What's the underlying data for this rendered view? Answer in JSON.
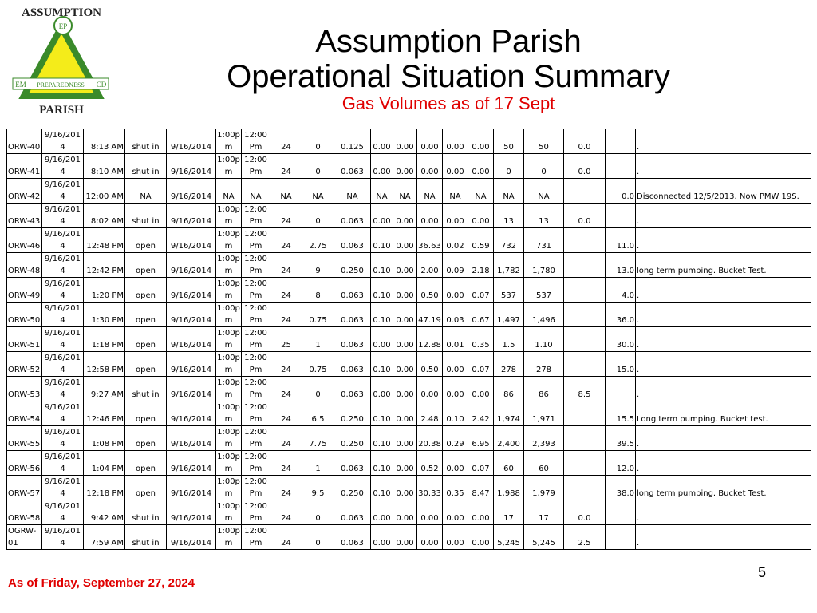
{
  "header": {
    "title_line1": "Assumption Parish",
    "title_line2": "Operational Situation Summary",
    "subtitle": "Gas Volumes as of 17 Sept",
    "logo_top": "ASSUMPTION",
    "logo_bottom": "PARISH",
    "logo_left": "EM",
    "logo_center": "PREPAREDNESS",
    "logo_right": "CD",
    "logo_ep": "EP"
  },
  "table": {
    "rows": [
      [
        "ORW-40",
        "9/16/2014",
        "8:13 AM",
        "shut in",
        "9/16/2014",
        "1:00pm",
        "12:00 Pm",
        "24",
        "0",
        "0.125",
        "0.00",
        "0.00",
        "0.00",
        "0.00",
        "0.00",
        "50",
        "50",
        "0.0",
        null,
        "."
      ],
      [
        "ORW-41",
        "9/16/2014",
        "8:10 AM",
        "shut in",
        "9/16/2014",
        "1:00pm",
        "12:00 Pm",
        "24",
        "0",
        "0.063",
        "0.00",
        "0.00",
        "0.00",
        "0.00",
        "0.00",
        "0",
        "0",
        "0.0",
        null,
        "."
      ],
      [
        "ORW-42",
        "9/16/2014",
        "12:00 AM",
        "NA",
        "9/16/2014",
        "NA",
        "NA",
        "NA",
        "NA",
        "NA",
        "NA",
        "NA",
        "NA",
        "NA",
        "NA",
        "NA",
        "NA",
        null,
        "0.0",
        "Disconnected 12/5/2013.  Now PMW 19S."
      ],
      [
        "ORW-43",
        "9/16/2014",
        "8:02 AM",
        "shut in",
        "9/16/2014",
        "1:00pm",
        "12:00 Pm",
        "24",
        "0",
        "0.063",
        "0.00",
        "0.00",
        "0.00",
        "0.00",
        "0.00",
        "13",
        "13",
        "0.0",
        null,
        "."
      ],
      [
        "ORW-46",
        "9/16/2014",
        "12:48 PM",
        "open",
        "9/16/2014",
        "1:00pm",
        "12:00 Pm",
        "24",
        "2.75",
        "0.063",
        "0.10",
        "0.00",
        "36.63",
        "0.02",
        "0.59",
        "732",
        "731",
        null,
        "11.0",
        "."
      ],
      [
        "ORW-48",
        "9/16/2014",
        "12:42 PM",
        "open",
        "9/16/2014",
        "1:00pm",
        "12:00 Pm",
        "24",
        "9",
        "0.250",
        "0.10",
        "0.00",
        "2.00",
        "0.09",
        "2.18",
        "1,782",
        "1,780",
        null,
        "13.0",
        "long term pumping. Bucket Test."
      ],
      [
        "ORW-49",
        "9/16/2014",
        "1:20 PM",
        "open",
        "9/16/2014",
        "1:00pm",
        "12:00 Pm",
        "24",
        "8",
        "0.063",
        "0.10",
        "0.00",
        "0.50",
        "0.00",
        "0.07",
        "537",
        "537",
        null,
        "4.0",
        "."
      ],
      [
        "ORW-50",
        "9/16/2014",
        "1:30 PM",
        "open",
        "9/16/2014",
        "1:00pm",
        "12:00 Pm",
        "24",
        "0.75",
        "0.063",
        "0.10",
        "0.00",
        "47.19",
        "0.03",
        "0.67",
        "1,497",
        "1,496",
        null,
        "36.0",
        "."
      ],
      [
        "ORW-51",
        "9/16/2014",
        "1:18 PM",
        "open",
        "9/16/2014",
        "1:00pm",
        "12:00 Pm",
        "25",
        "1",
        "0.063",
        "0.00",
        "0.00",
        "12.88",
        "0.01",
        "0.35",
        "1.5",
        "1.10",
        null,
        "30.0",
        "."
      ],
      [
        "ORW-52",
        "9/16/2014",
        "12:58 PM",
        "open",
        "9/16/2014",
        "1:00pm",
        "12:00 Pm",
        "24",
        "0.75",
        "0.063",
        "0.10",
        "0.00",
        "0.50",
        "0.00",
        "0.07",
        "278",
        "278",
        null,
        "15.0",
        "."
      ],
      [
        "ORW-53",
        "9/16/2014",
        "9:27 AM",
        "shut in",
        "9/16/2014",
        "1:00pm",
        "12:00 Pm",
        "24",
        "0",
        "0.063",
        "0.00",
        "0.00",
        "0.00",
        "0.00",
        "0.00",
        "86",
        "86",
        "8.5",
        null,
        "."
      ],
      [
        "ORW-54",
        "9/16/2014",
        "12:46 PM",
        "open",
        "9/16/2014",
        "1:00pm",
        "12:00 Pm",
        "24",
        "6.5",
        "0.250",
        "0.10",
        "0.00",
        "2.48",
        "0.10",
        "2.42",
        "1,974",
        "1,971",
        null,
        "15.5",
        "Long term pumping. Bucket test."
      ],
      [
        "ORW-55",
        "9/16/2014",
        "1:08 PM",
        "open",
        "9/16/2014",
        "1:00pm",
        "12:00 Pm",
        "24",
        "7.75",
        "0.250",
        "0.10",
        "0.00",
        "20.38",
        "0.29",
        "6.95",
        "2,400",
        "2,393",
        null,
        "39.5",
        "."
      ],
      [
        "ORW-56",
        "9/16/2014",
        "1:04 PM",
        "open",
        "9/16/2014",
        "1:00pm",
        "12:00 Pm",
        "24",
        "1",
        "0.063",
        "0.10",
        "0.00",
        "0.52",
        "0.00",
        "0.07",
        "60",
        "60",
        null,
        "12.0",
        "."
      ],
      [
        "ORW-57",
        "9/16/2014",
        "12:18 PM",
        "open",
        "9/16/2014",
        "1:00pm",
        "12:00 Pm",
        "24",
        "9.5",
        "0.250",
        "0.10",
        "0.00",
        "30.33",
        "0.35",
        "8.47",
        "1,988",
        "1,979",
        null,
        "38.0",
        "long term pumping. Bucket Test."
      ],
      [
        "ORW-58",
        "9/16/2014",
        "9:42 AM",
        "shut in",
        "9/16/2014",
        "1:00pm",
        "12:00 Pm",
        "24",
        "0",
        "0.063",
        "0.00",
        "0.00",
        "0.00",
        "0.00",
        "0.00",
        "17",
        "17",
        "0.0",
        null,
        "."
      ],
      [
        "OGRW-01",
        "9/16/2014",
        "7:59 AM",
        "shut in",
        "9/16/2014",
        "1:00pm",
        "12:00 Pm",
        "24",
        "0",
        "0.063",
        "0.00",
        "0.00",
        "0.00",
        "0.00",
        "0.00",
        "5,245",
        "5,245",
        "2.5",
        null,
        "."
      ]
    ]
  },
  "footer": {
    "date": "As of Friday, September 27, 2024",
    "page_number": "5"
  }
}
